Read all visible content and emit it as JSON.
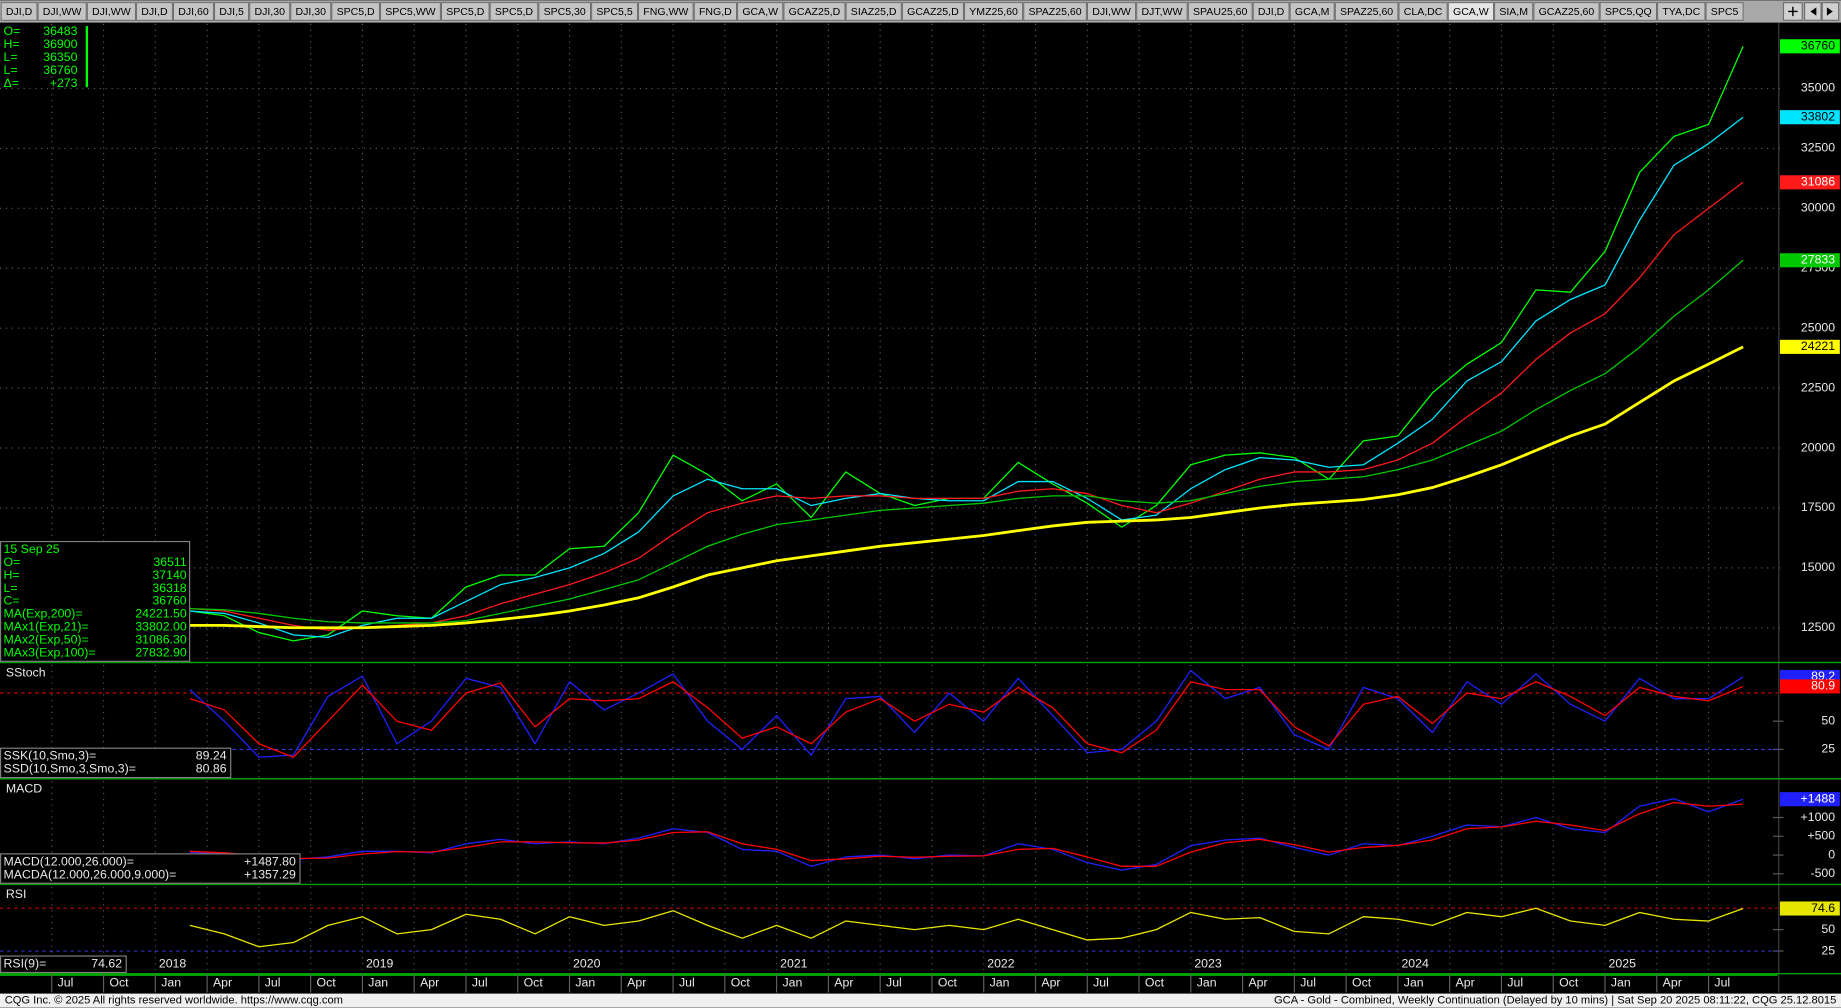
{
  "tabs": [
    "DJI,D",
    "DJI,WW",
    "DJI,WW",
    "DJI,D",
    "DJI,60",
    "DJI,5",
    "DJI,30",
    "DJI,30",
    "SPC5,D",
    "SPC5,WW",
    "SPC5,D",
    "SPC5,D",
    "SPC5,30",
    "SPC5,5",
    "FNG,WW",
    "FNG,D",
    "GCA,W",
    "GCAZ25,D",
    "SIAZ25,D",
    "GCAZ25,D",
    "YMZ25,60",
    "SPAZ25,60",
    "DJI,WW",
    "DJT,WW",
    "SPAU25,60",
    "DJI,D",
    "GCA,M",
    "SPAZ25,60",
    "CLA,DC",
    "GCA,W",
    "SIA,M",
    "GCAZ25,60",
    "SPC5,QQ",
    "TYA,DC",
    "SPC5"
  ],
  "active_tab": 29,
  "quote": [
    {
      "label": "O=",
      "value": "36483"
    },
    {
      "label": "H=",
      "value": "36900"
    },
    {
      "label": "L=",
      "value": "36350"
    },
    {
      "label": "L=",
      "value": "36760"
    },
    {
      "label": "Δ=",
      "value": "+273"
    }
  ],
  "data_window": {
    "date": "15 Sep 25",
    "rows": [
      {
        "label": "O=",
        "value": "36511"
      },
      {
        "label": "H=",
        "value": "37140"
      },
      {
        "label": "L=",
        "value": "36318"
      },
      {
        "label": "C=",
        "value": "36760"
      },
      {
        "label": "MA(Exp,200)=",
        "value": "24221.50"
      },
      {
        "label": "MAx1(Exp,21)=",
        "value": "33802.00"
      },
      {
        "label": "MAx2(Exp,50)=",
        "value": "31086.30"
      },
      {
        "label": "MAx3(Exp,100)=",
        "value": "27832.90"
      }
    ]
  },
  "time_axis": {
    "range": [
      "2017-04",
      "2025-11"
    ],
    "months": [
      {
        "date": "2017-07",
        "label": "Jul"
      },
      {
        "date": "2017-10",
        "label": "Oct"
      },
      {
        "date": "2018-01",
        "label": "Jan"
      },
      {
        "date": "2018-04",
        "label": "Apr"
      },
      {
        "date": "2018-07",
        "label": "Jul"
      },
      {
        "date": "2018-10",
        "label": "Oct"
      },
      {
        "date": "2019-01",
        "label": "Jan"
      },
      {
        "date": "2019-04",
        "label": "Apr"
      },
      {
        "date": "2019-07",
        "label": "Jul"
      },
      {
        "date": "2019-10",
        "label": "Oct"
      },
      {
        "date": "2020-01",
        "label": "Jan"
      },
      {
        "date": "2020-04",
        "label": "Apr"
      },
      {
        "date": "2020-07",
        "label": "Jul"
      },
      {
        "date": "2020-10",
        "label": "Oct"
      },
      {
        "date": "2021-01",
        "label": "Jan"
      },
      {
        "date": "2021-04",
        "label": "Apr"
      },
      {
        "date": "2021-07",
        "label": "Jul"
      },
      {
        "date": "2021-10",
        "label": "Oct"
      },
      {
        "date": "2022-01",
        "label": "Jan"
      },
      {
        "date": "2022-04",
        "label": "Apr"
      },
      {
        "date": "2022-07",
        "label": "Jul"
      },
      {
        "date": "2022-10",
        "label": "Oct"
      },
      {
        "date": "2023-01",
        "label": "Jan"
      },
      {
        "date": "2023-04",
        "label": "Apr"
      },
      {
        "date": "2023-07",
        "label": "Jul"
      },
      {
        "date": "2023-10",
        "label": "Oct"
      },
      {
        "date": "2024-01",
        "label": "Jan"
      },
      {
        "date": "2024-04",
        "label": "Apr"
      },
      {
        "date": "2024-07",
        "label": "Jul"
      },
      {
        "date": "2024-10",
        "label": "Oct"
      },
      {
        "date": "2025-01",
        "label": "Jan"
      },
      {
        "date": "2025-04",
        "label": "Apr"
      },
      {
        "date": "2025-07",
        "label": "Jul"
      }
    ],
    "years": [
      {
        "date": "2018-01",
        "label": "2018"
      },
      {
        "date": "2019-01",
        "label": "2019"
      },
      {
        "date": "2020-01",
        "label": "2020"
      },
      {
        "date": "2021-01",
        "label": "2021"
      },
      {
        "date": "2022-01",
        "label": "2022"
      },
      {
        "date": "2023-01",
        "label": "2023"
      },
      {
        "date": "2024-01",
        "label": "2024"
      },
      {
        "date": "2025-01",
        "label": "2025"
      }
    ]
  },
  "chart_data": [
    {
      "type": "line",
      "grid": true,
      "x": [
        "2018-03",
        "2018-05",
        "2018-07",
        "2018-09",
        "2018-11",
        "2019-01",
        "2019-03",
        "2019-05",
        "2019-07",
        "2019-09",
        "2019-11",
        "2020-01",
        "2020-03",
        "2020-05",
        "2020-07",
        "2020-09",
        "2020-11",
        "2021-01",
        "2021-03",
        "2021-05",
        "2021-07",
        "2021-09",
        "2021-11",
        "2022-01",
        "2022-03",
        "2022-05",
        "2022-07",
        "2022-09",
        "2022-11",
        "2023-01",
        "2023-03",
        "2023-05",
        "2023-07",
        "2023-09",
        "2023-11",
        "2024-01",
        "2024-03",
        "2024-05",
        "2024-07",
        "2024-09",
        "2024-11",
        "2025-01",
        "2025-03",
        "2025-05",
        "2025-07",
        "2025-09"
      ],
      "ylim": [
        11100,
        37700
      ],
      "yticks": [
        12500,
        15000,
        17500,
        20000,
        22500,
        25000,
        27500,
        30000,
        32500,
        35000
      ],
      "series": [
        {
          "color": "#00ff00",
          "values": [
            13200,
            13000,
            12300,
            11950,
            12200,
            13200,
            13000,
            12900,
            14200,
            14700,
            14700,
            15800,
            15900,
            17300,
            19700,
            18900,
            17800,
            18500,
            17100,
            19000,
            18100,
            17600,
            17900,
            17900,
            19400,
            18500,
            17700,
            16700,
            17600,
            19300,
            19700,
            19800,
            19600,
            18700,
            20300,
            20500,
            22300,
            23500,
            24400,
            26600,
            26500,
            28200,
            31500,
            33000,
            33500,
            36760
          ]
        },
        {
          "color": "#00e5ff",
          "values": [
            13200,
            13100,
            12700,
            12200,
            12100,
            12600,
            12900,
            12900,
            13600,
            14300,
            14600,
            15000,
            15600,
            16500,
            18000,
            18700,
            18300,
            18300,
            17600,
            17900,
            18100,
            17900,
            17800,
            17800,
            18600,
            18600,
            17900,
            17000,
            17200,
            18300,
            19100,
            19600,
            19500,
            19200,
            19300,
            20200,
            21200,
            22800,
            23600,
            25300,
            26200,
            26800,
            29500,
            31800,
            32700,
            33802
          ]
        },
        {
          "color": "#ff1a1a",
          "values": [
            13300,
            13200,
            12900,
            12600,
            12400,
            12500,
            12600,
            12700,
            13000,
            13500,
            13900,
            14300,
            14800,
            15400,
            16400,
            17300,
            17700,
            18000,
            17900,
            18000,
            18000,
            17900,
            17900,
            17900,
            18200,
            18300,
            18100,
            17600,
            17300,
            17700,
            18200,
            18700,
            19000,
            19000,
            19100,
            19500,
            20200,
            21300,
            22300,
            23700,
            24800,
            25600,
            27100,
            28900,
            30000,
            31086
          ]
        },
        {
          "color": "#00c800",
          "values": [
            13300,
            13250,
            13100,
            12900,
            12750,
            12700,
            12700,
            12700,
            12800,
            13100,
            13400,
            13700,
            14100,
            14500,
            15200,
            15900,
            16400,
            16800,
            17000,
            17200,
            17400,
            17500,
            17600,
            17700,
            17900,
            18000,
            18000,
            17800,
            17700,
            17800,
            18100,
            18400,
            18600,
            18700,
            18800,
            19100,
            19500,
            20100,
            20700,
            21600,
            22400,
            23100,
            24200,
            25500,
            26600,
            27833
          ]
        },
        {
          "color": "#ffff00",
          "values": [
            12600,
            12600,
            12550,
            12500,
            12500,
            12500,
            12550,
            12600,
            12700,
            12850,
            13000,
            13200,
            13450,
            13750,
            14200,
            14700,
            15000,
            15300,
            15500,
            15700,
            15900,
            16050,
            16200,
            16350,
            16550,
            16750,
            16900,
            16950,
            17000,
            17100,
            17300,
            17500,
            17650,
            17750,
            17850,
            18050,
            18350,
            18800,
            19300,
            19900,
            20500,
            21000,
            21900,
            22800,
            23500,
            24221
          ]
        }
      ]
    },
    {
      "type": "line",
      "title": "SStoch",
      "ylim": [
        0,
        100
      ],
      "yticks": [
        25,
        50
      ],
      "levels": [
        {
          "value": 75,
          "color": "#ff0000"
        },
        {
          "value": 25,
          "color": "#4040ff"
        }
      ],
      "series": [
        {
          "name": "SSK(10,Smo,3)=",
          "readout": "89.24",
          "last_label": "89.2",
          "color": "#2020ff",
          "values": [
            78,
            50,
            18,
            20,
            72,
            90,
            30,
            50,
            88,
            80,
            30,
            85,
            60,
            75,
            92,
            50,
            25,
            55,
            20,
            70,
            72,
            40,
            75,
            50,
            88,
            55,
            22,
            25,
            50,
            95,
            70,
            80,
            38,
            25,
            80,
            70,
            40,
            85,
            65,
            92,
            65,
            50,
            88,
            70,
            70,
            89.24
          ]
        },
        {
          "name": "SSD(10,Smo,3,Smo,3)=",
          "readout": "80.86",
          "last_label": "80.9",
          "color": "#ff0000",
          "values": [
            70,
            60,
            30,
            18,
            50,
            82,
            50,
            42,
            75,
            84,
            45,
            70,
            68,
            70,
            85,
            62,
            35,
            45,
            30,
            58,
            70,
            50,
            65,
            58,
            80,
            62,
            30,
            22,
            42,
            85,
            78,
            78,
            45,
            28,
            65,
            72,
            48,
            75,
            70,
            85,
            72,
            55,
            80,
            72,
            68,
            80.86
          ]
        }
      ]
    },
    {
      "type": "line",
      "title": "MACD",
      "ylim": [
        -750,
        1970
      ],
      "yticks": [
        {
          "value": 1000,
          "label": "+1000"
        },
        {
          "value": 500,
          "label": "+500"
        },
        0,
        {
          "value": -500,
          "label": "-500"
        }
      ],
      "series": [
        {
          "name": "MACD(12.000,26.000)=",
          "readout": "+1487.80",
          "last_label": "+1488",
          "color": "#2020ff",
          "values": [
            80,
            30,
            -80,
            -120,
            -50,
            100,
            100,
            60,
            300,
            420,
            300,
            350,
            300,
            450,
            700,
            600,
            150,
            100,
            -300,
            -50,
            0,
            -100,
            0,
            -20,
            300,
            150,
            -200,
            -400,
            -250,
            250,
            400,
            450,
            200,
            0,
            300,
            250,
            500,
            800,
            750,
            1000,
            700,
            600,
            1300,
            1500,
            1150,
            1487.8
          ]
        },
        {
          "name": "MACDA(12.000,26.000,9.000)=",
          "readout": "+1357.29",
          "color": "#ff0000",
          "values": [
            100,
            60,
            -20,
            -90,
            -80,
            30,
            90,
            80,
            200,
            350,
            350,
            330,
            320,
            400,
            600,
            620,
            300,
            150,
            -150,
            -100,
            -30,
            -60,
            -30,
            -20,
            150,
            180,
            -50,
            -300,
            -300,
            80,
            330,
            420,
            280,
            80,
            200,
            260,
            400,
            700,
            750,
            900,
            800,
            650,
            1100,
            1400,
            1300,
            1357.29
          ]
        }
      ]
    },
    {
      "type": "line",
      "title": "RSI",
      "ylim": [
        0,
        100
      ],
      "yticks": [
        25,
        50
      ],
      "levels": [
        {
          "value": 75,
          "color": "#ff0000"
        },
        {
          "value": 25,
          "color": "#4040ff"
        }
      ],
      "series": [
        {
          "name": "RSI(9)=",
          "readout": "74.62",
          "last_label": "74.6",
          "color": "#e6e600",
          "values": [
            55,
            45,
            30,
            35,
            55,
            65,
            45,
            50,
            68,
            62,
            45,
            65,
            55,
            60,
            72,
            55,
            40,
            55,
            40,
            60,
            55,
            50,
            55,
            50,
            62,
            50,
            38,
            40,
            50,
            70,
            62,
            64,
            48,
            45,
            65,
            62,
            55,
            70,
            65,
            75,
            60,
            55,
            70,
            62,
            60,
            74.62
          ]
        }
      ]
    }
  ],
  "footer": {
    "left": "CQG Inc. © 2025 All rights reserved worldwide. https://www.cqg.com",
    "right": "GCA - Gold - Combined, Weekly Continuation (Delayed by 10 mins) | Sat Sep 20 2025 08:11:22, CQG 25.12.8015"
  }
}
